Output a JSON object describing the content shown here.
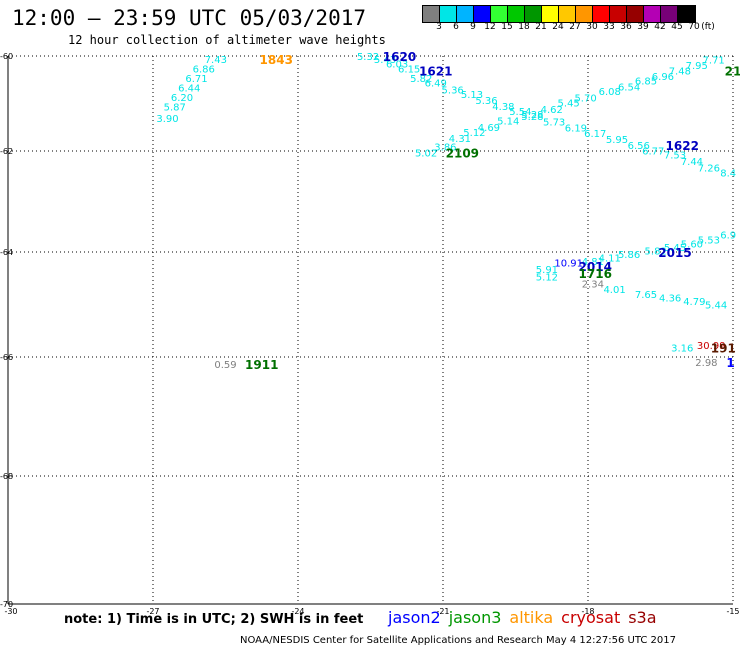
{
  "header": {
    "title": "12:00 – 23:59 UTC 05/03/2017",
    "subtitle": "12 hour collection of altimeter wave heights"
  },
  "colorbar": {
    "colors": [
      "#7f7f7f",
      "#00e6e6",
      "#00b4ff",
      "#0000ff",
      "#33ff33",
      "#00c800",
      "#009600",
      "#ffff00",
      "#ffc800",
      "#ff9600",
      "#ff0000",
      "#c80000",
      "#960000",
      "#b400b4",
      "#780078",
      "#000000"
    ],
    "labels": [
      "3",
      "6",
      "9",
      "12",
      "15",
      "18",
      "21",
      "24",
      "27",
      "30",
      "33",
      "36",
      "39",
      "42",
      "45",
      "70",
      "(ft)"
    ]
  },
  "axes": {
    "lon_labels": [
      "-30",
      "-27",
      "-24",
      "-21",
      "-18",
      "-15"
    ],
    "lat_labels": [
      "-60",
      "-62",
      "-64",
      "-66",
      "-68",
      "-70"
    ]
  },
  "labels": [
    {
      "t": "5.32",
      "lon": -22.55,
      "lat": -59.96,
      "c": "#00e6e6"
    },
    {
      "t": "5.43",
      "lon": -22.2,
      "lat": -60.06,
      "c": "#00e6e6"
    },
    {
      "t": "6.03",
      "lon": -21.95,
      "lat": -60.16,
      "c": "#00e6e6"
    },
    {
      "t": "6.15",
      "lon": -21.7,
      "lat": -60.26,
      "c": "#00e6e6"
    },
    {
      "t": "5.82",
      "lon": -21.45,
      "lat": -60.46,
      "c": "#00e6e6"
    },
    {
      "t": "6.49",
      "lon": -21.15,
      "lat": -60.56,
      "c": "#00e6e6"
    },
    {
      "t": "5.36",
      "lon": -20.8,
      "lat": -60.7,
      "c": "#00e6e6"
    },
    {
      "t": "5.13",
      "lon": -20.4,
      "lat": -60.8,
      "c": "#00e6e6"
    },
    {
      "t": "5.36",
      "lon": -20.1,
      "lat": -60.93,
      "c": "#00e6e6"
    },
    {
      "t": "4.38",
      "lon": -19.75,
      "lat": -61.05,
      "c": "#00e6e6"
    },
    {
      "t": "5.54",
      "lon": -19.4,
      "lat": -61.16,
      "c": "#00e6e6"
    },
    {
      "t": "5.28",
      "lon": -19.15,
      "lat": -61.26,
      "c": "#00e6e6"
    },
    {
      "t": "5.73",
      "lon": -18.7,
      "lat": -61.38,
      "c": "#00e6e6"
    },
    {
      "t": "6.19",
      "lon": -18.25,
      "lat": -61.5,
      "c": "#00e6e6"
    },
    {
      "t": "6.17",
      "lon": -17.85,
      "lat": -61.62,
      "c": "#00e6e6"
    },
    {
      "t": "5.95",
      "lon": -17.4,
      "lat": -61.75,
      "c": "#00e6e6"
    },
    {
      "t": "6.56",
      "lon": -16.95,
      "lat": -61.87,
      "c": "#00e6e6"
    },
    {
      "t": "6.77",
      "lon": -16.65,
      "lat": -61.99,
      "c": "#00e6e6"
    },
    {
      "t": "7.53",
      "lon": -16.2,
      "lat": -62.07,
      "c": "#00e6e6"
    },
    {
      "t": "7.44",
      "lon": -15.85,
      "lat": -62.2,
      "c": "#00e6e6"
    },
    {
      "t": "7.26",
      "lon": -15.5,
      "lat": -62.33,
      "c": "#00e6e6"
    },
    {
      "t": "8.4",
      "lon": -15.1,
      "lat": -62.43,
      "c": "#00e6e6"
    },
    {
      "t": "5.02",
      "lon": -21.35,
      "lat": -62.03,
      "c": "#00e6e6"
    },
    {
      "t": "3.86",
      "lon": -20.95,
      "lat": -61.9,
      "c": "#00e6e6"
    },
    {
      "t": "4.31",
      "lon": -20.65,
      "lat": -61.73,
      "c": "#00e6e6"
    },
    {
      "t": "5.12",
      "lon": -20.35,
      "lat": -61.6,
      "c": "#00e6e6"
    },
    {
      "t": "4.69",
      "lon": -20.05,
      "lat": -61.49,
      "c": "#00e6e6"
    },
    {
      "t": "5.14",
      "lon": -19.65,
      "lat": -61.36,
      "c": "#00e6e6"
    },
    {
      "t": "5.28",
      "lon": -19.15,
      "lat": -61.22,
      "c": "#00e6e6"
    },
    {
      "t": "4.62",
      "lon": -18.75,
      "lat": -61.12,
      "c": "#00e6e6"
    },
    {
      "t": "5.45",
      "lon": -18.4,
      "lat": -60.98,
      "c": "#00e6e6"
    },
    {
      "t": "5.70",
      "lon": -18.05,
      "lat": -60.87,
      "c": "#00e6e6"
    },
    {
      "t": "6.08",
      "lon": -17.55,
      "lat": -60.74,
      "c": "#00e6e6"
    },
    {
      "t": "6.54",
      "lon": -17.15,
      "lat": -60.64,
      "c": "#00e6e6"
    },
    {
      "t": "6.85",
      "lon": -16.8,
      "lat": -60.52,
      "c": "#00e6e6"
    },
    {
      "t": "6.96",
      "lon": -16.45,
      "lat": -60.42,
      "c": "#00e6e6"
    },
    {
      "t": "7.48",
      "lon": -16.1,
      "lat": -60.3,
      "c": "#00e6e6"
    },
    {
      "t": "7.95",
      "lon": -15.75,
      "lat": -60.19,
      "c": "#00e6e6"
    },
    {
      "t": "7.71",
      "lon": -15.4,
      "lat": -60.07,
      "c": "#00e6e6"
    },
    {
      "t": "7.43",
      "lon": -25.7,
      "lat": -60.06,
      "c": "#00e6e6"
    },
    {
      "t": "6.86",
      "lon": -25.95,
      "lat": -60.26,
      "c": "#00e6e6"
    },
    {
      "t": "6.71",
      "lon": -26.1,
      "lat": -60.46,
      "c": "#00e6e6"
    },
    {
      "t": "6.44",
      "lon": -26.25,
      "lat": -60.66,
      "c": "#00e6e6"
    },
    {
      "t": "6.20",
      "lon": -26.4,
      "lat": -60.86,
      "c": "#00e6e6"
    },
    {
      "t": "5.87",
      "lon": -26.55,
      "lat": -61.06,
      "c": "#00e6e6"
    },
    {
      "t": "3.90",
      "lon": -26.7,
      "lat": -61.3,
      "c": "#00e6e6"
    },
    {
      "t": "6.9",
      "lon": -15.1,
      "lat": -63.65,
      "c": "#00e6e6"
    },
    {
      "t": "5.53",
      "lon": -15.5,
      "lat": -63.75,
      "c": "#00e6e6"
    },
    {
      "t": "5.60",
      "lon": -15.85,
      "lat": -63.83,
      "c": "#00e6e6"
    },
    {
      "t": "5.45",
      "lon": -16.2,
      "lat": -63.9,
      "c": "#00e6e6"
    },
    {
      "t": "5.82",
      "lon": -16.6,
      "lat": -63.97,
      "c": "#00e6e6"
    },
    {
      "t": "5.86",
      "lon": -17.15,
      "lat": -64.04,
      "c": "#00e6e6"
    },
    {
      "t": "4.11",
      "lon": -17.55,
      "lat": -64.1,
      "c": "#00e6e6"
    },
    {
      "t": "4.81",
      "lon": -17.9,
      "lat": -64.17,
      "c": "#00e6e6"
    },
    {
      "t": "10.91",
      "lon": -18.4,
      "lat": -64.2,
      "c": "#0000ff"
    },
    {
      "t": "5.91",
      "lon": -18.85,
      "lat": -64.32,
      "c": "#00e6e6"
    },
    {
      "t": "5.12",
      "lon": -18.85,
      "lat": -64.47,
      "c": "#00e6e6"
    },
    {
      "t": "2.34",
      "lon": -17.9,
      "lat": -64.6,
      "c": "#7f7f7f"
    },
    {
      "t": "4.01",
      "lon": -17.45,
      "lat": -64.7,
      "c": "#00e6e6"
    },
    {
      "t": "7.65",
      "lon": -16.8,
      "lat": -64.8,
      "c": "#00e6e6"
    },
    {
      "t": "4.36",
      "lon": -16.3,
      "lat": -64.87,
      "c": "#00e6e6"
    },
    {
      "t": "4.79",
      "lon": -15.8,
      "lat": -64.93,
      "c": "#00e6e6"
    },
    {
      "t": "5.44",
      "lon": -15.35,
      "lat": -65.0,
      "c": "#00e6e6"
    },
    {
      "t": "3.16",
      "lon": -16.05,
      "lat": -65.82,
      "c": "#00e6e6"
    },
    {
      "t": "30.99",
      "lon": -15.45,
      "lat": -65.77,
      "c": "#c80000"
    },
    {
      "t": "2.98",
      "lon": -15.55,
      "lat": -66.08,
      "c": "#7f7f7f"
    },
    {
      "t": "0.59",
      "lon": -25.5,
      "lat": -66.12,
      "c": "#7f7f7f"
    }
  ],
  "time_labels": [
    {
      "t": "1843",
      "lon": -24.45,
      "lat": -60.06,
      "c": "#ff9600"
    },
    {
      "t": "1620",
      "lon": -21.9,
      "lat": -59.96,
      "c": "#0000c0"
    },
    {
      "t": "1621",
      "lon": -21.15,
      "lat": -60.3,
      "c": "#0000c0"
    },
    {
      "t": "1622",
      "lon": -16.05,
      "lat": -61.87,
      "c": "#0000c0"
    },
    {
      "t": "2109",
      "lon": -20.6,
      "lat": -62.03,
      "c": "#007000"
    },
    {
      "t": "21",
      "lon": -15.0,
      "lat": -60.3,
      "c": "#007000"
    },
    {
      "t": "2015",
      "lon": -16.2,
      "lat": -64.0,
      "c": "#0000c0"
    },
    {
      "t": "2014",
      "lon": -17.85,
      "lat": -64.27,
      "c": "#0000c0"
    },
    {
      "t": "1716",
      "lon": -17.85,
      "lat": -64.4,
      "c": "#007000"
    },
    {
      "t": "1911",
      "lon": -24.75,
      "lat": -66.12,
      "c": "#007000"
    },
    {
      "t": "191",
      "lon": -15.2,
      "lat": -65.82,
      "c": "#5a1a00"
    },
    {
      "t": "1",
      "lon": -15.05,
      "lat": -66.08,
      "c": "#0000ff"
    }
  ],
  "note": "note: 1) Time is in UTC; 2) SWH is in feet",
  "legend": [
    {
      "name": "jason2",
      "color": "#0000ff"
    },
    {
      "name": "jason3",
      "color": "#009600"
    },
    {
      "name": "altika",
      "color": "#ff9600"
    },
    {
      "name": "cryosat",
      "color": "#c80000"
    },
    {
      "name": "s3a",
      "color": "#960000"
    }
  ],
  "footer": "NOAA/NESDIS Center for Satellite Applications and Research    May  4 12:27:56 UTC 2017"
}
